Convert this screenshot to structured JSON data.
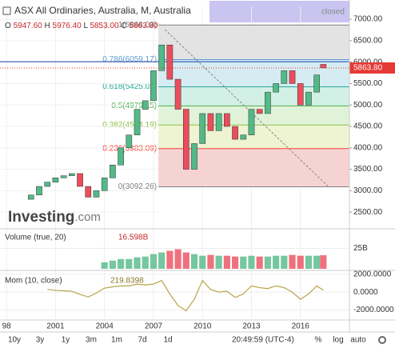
{
  "header": {
    "title": "ASX All Ordinaries, Australia, M, Australia",
    "status": "closed",
    "ohlc": [
      {
        "key": "O",
        "value": "5947.60"
      },
      {
        "key": "H",
        "value": "5976.40"
      },
      {
        "key": "L",
        "value": "5853.00"
      },
      {
        "key": "C",
        "value": "5863.80"
      }
    ],
    "logo": "Investing",
    "logo_suffix": ".com"
  },
  "chart_data": [
    {
      "type": "candlestick",
      "x": [
        1999.5,
        2000,
        2000.5,
        2001,
        2001.5,
        2002,
        2002.5,
        2003,
        2003.5,
        2004,
        2004.5,
        2005,
        2005.5,
        2006,
        2006.5,
        2007,
        2007.5,
        2008,
        2008.5,
        2009,
        2009.5,
        2010,
        2010.5,
        2011,
        2011.5,
        2012,
        2012.5,
        2013,
        2013.5,
        2014,
        2014.5,
        2015,
        2015.5,
        2016,
        2016.5,
        2017,
        2017.4
      ],
      "open": [
        2800,
        2900,
        3100,
        3200,
        3300,
        3350,
        3400,
        3100,
        2850,
        3000,
        3300,
        3600,
        4000,
        4300,
        4900,
        5100,
        5800,
        6400,
        5600,
        4900,
        3500,
        4100,
        4800,
        4400,
        4800,
        4500,
        4200,
        4300,
        4900,
        4800,
        5300,
        5500,
        5800,
        5500,
        5000,
        5300,
        5947.6
      ],
      "close": [
        2900,
        3100,
        3200,
        3300,
        3350,
        3400,
        3100,
        2850,
        3000,
        3300,
        3600,
        4000,
        4300,
        4900,
        5100,
        5800,
        6400,
        5600,
        4900,
        3500,
        4100,
        4800,
        4400,
        4800,
        4500,
        4200,
        4300,
        4900,
        4800,
        5300,
        5500,
        5800,
        5500,
        5000,
        5300,
        5700,
        5863.8
      ],
      "up_color": "#53b987",
      "down_color": "#eb4d5c",
      "xlim": [
        1997.6,
        2019.0
      ],
      "ylim": [
        2130,
        7300
      ],
      "xticks": [
        {
          "value": 1998,
          "label": "98"
        },
        2001,
        2004,
        2007,
        2010,
        2013,
        2016
      ],
      "yticks": [
        {
          "value": 2500,
          "label": "2500.00"
        },
        {
          "value": 3000,
          "label": "3000.00"
        },
        {
          "value": 3500,
          "label": "3500.00"
        },
        {
          "value": 4000,
          "label": "4000.00"
        },
        {
          "value": 4500,
          "label": "4500.00"
        },
        {
          "value": 5000,
          "label": "5000.00"
        },
        {
          "value": 5500,
          "label": "5500.00"
        },
        {
          "value": 6000,
          "label": "6000.00"
        },
        {
          "value": 6500,
          "label": "6500.00"
        },
        {
          "value": 7000,
          "label": "7000.00"
        }
      ],
      "last_price": {
        "value": 5863.8,
        "label": "5863.80"
      },
      "hline": {
        "value": 6010,
        "color": "#1e3fa8"
      },
      "trendline": {
        "x": [
          2007.7,
          2017.7
        ],
        "y": [
          6760,
          3100
        ]
      },
      "fibonacci": {
        "start": 2007.3,
        "levels": [
          {
            "value": 6866.03,
            "label": "1(6866.03)",
            "color": "#808080",
            "fill": "#e3e3e3"
          },
          {
            "value": 6059.17,
            "label": "0.786(6059.17)",
            "color": "#5b9bd5",
            "fill": "#d6ecf3"
          },
          {
            "value": 5425.02,
            "label": "0.618(5425.02)",
            "color": "#26a69a",
            "fill": "#d3f0e6"
          },
          {
            "value": 4979.15,
            "label": "0.5(4979.15)",
            "color": "#4caf50",
            "fill": "#e0f3d8"
          },
          {
            "value": 4534.19,
            "label": "0.382(4534.19)",
            "color": "#8bc34a",
            "fill": "#eef3d2"
          },
          {
            "value": 3983.09,
            "label": "0.236(3983.09)",
            "color": "#f44336",
            "fill": "#f6d3d3"
          },
          {
            "value": 3092.26,
            "label": "0(3092.26)",
            "color": "#808080"
          }
        ]
      }
    },
    {
      "type": "bar",
      "name": "Volume (true, 20)",
      "last_label": "16.598B",
      "values": [
        null,
        null,
        null,
        null,
        null,
        null,
        null,
        null,
        null,
        8,
        10,
        12,
        12,
        14,
        15,
        18,
        20,
        22,
        24,
        20,
        18,
        16,
        17,
        16,
        16,
        15,
        15,
        16,
        15,
        15,
        16,
        16,
        17,
        16,
        16,
        16,
        16.598
      ],
      "ylim": [
        0,
        48
      ],
      "yticks": [
        {
          "value": 25,
          "label": "25B"
        }
      ]
    },
    {
      "type": "line",
      "name": "Mom (10, close)",
      "last_label": "219.8398",
      "color": "#b8a24a",
      "values": [
        null,
        null,
        300,
        200,
        150,
        100,
        -250,
        -550,
        -100,
        450,
        600,
        700,
        700,
        900,
        800,
        900,
        1300,
        -200,
        -1500,
        -2100,
        -800,
        1300,
        300,
        0,
        100,
        -600,
        -200,
        700,
        500,
        400,
        700,
        500,
        0,
        -800,
        -200,
        700,
        219.8398
      ],
      "ylim": [
        -2950,
        2260
      ],
      "yticks": [
        {
          "value": 2000,
          "label": "2000.0000"
        },
        {
          "value": 0,
          "label": "0.0000"
        },
        {
          "value": -2000,
          "label": "-2000.0000"
        }
      ]
    }
  ],
  "toolbar": {
    "ranges": [
      "10y",
      "3y",
      "1y",
      "3m",
      "1m",
      "7d",
      "1d"
    ],
    "time": "20:49:59 (UTC-4)",
    "options": [
      "%",
      "log",
      "auto"
    ]
  }
}
